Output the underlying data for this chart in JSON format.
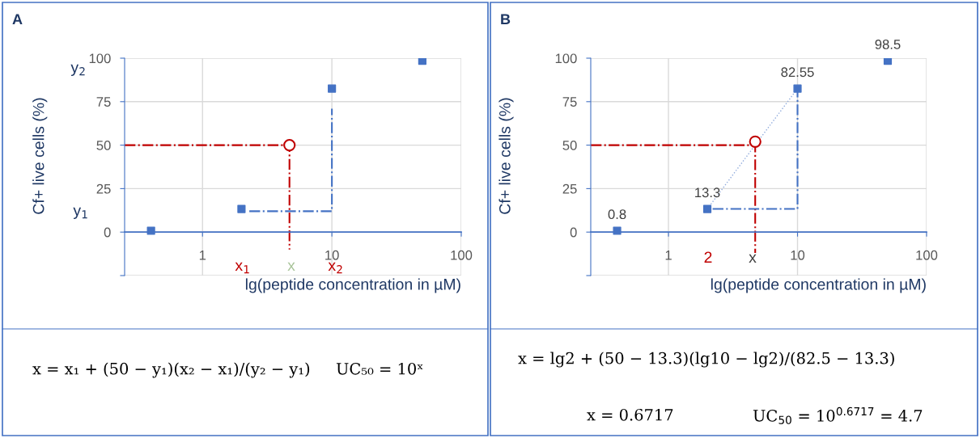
{
  "chart_data": [
    {
      "type": "scatter",
      "title": "A",
      "xlabel": "lg(peptide concentration in µM)",
      "ylabel": "Cf+ live cells (%)",
      "log": "x",
      "xlim": [
        0.25,
        100
      ],
      "xticks": [
        1,
        10,
        100
      ],
      "ylim": [
        -25,
        100
      ],
      "yticks": [
        {
          "value": -25,
          "label": null
        },
        0,
        25,
        50,
        75,
        100
      ],
      "grid": true,
      "ref_lines": [
        {
          "axis": "y",
          "value": 0,
          "color": "#4472c4"
        }
      ],
      "series": [
        {
          "type": "line",
          "color": "#c00000",
          "line_style": "dashed",
          "marker": "none",
          "x": [
            0.25,
            4.7,
            4.7
          ],
          "values": [
            50,
            50,
            -10
          ]
        },
        {
          "type": "line",
          "color": "#4472c4",
          "line_style": "dashed",
          "marker": "none",
          "x": [
            2.3,
            10,
            10
          ],
          "values": [
            12,
            12,
            71
          ]
        },
        {
          "type": "scatter",
          "color": "#4472c4",
          "marker": "square",
          "x": [
            0.4,
            2,
            10,
            50
          ],
          "values": [
            0.8,
            13.3,
            82.55,
            98.5
          ]
        },
        {
          "type": "scatter",
          "color": "#c00000",
          "marker": "circle",
          "x": [
            4.7
          ],
          "values": [
            50
          ]
        }
      ],
      "annotations": [
        "y$_{2}$",
        "y$_{1}$",
        "x$_{1}$",
        "x",
        "x$_{2}$",
        "x = x₁ + (50 − y₁)(x₂ − x₁)/(y₂ − y₁)",
        "UC₅₀ = 10ˣ"
      ]
    },
    {
      "type": "scatter",
      "title": "B",
      "xlabel": "lg(peptide concentration in µM)",
      "ylabel": "Cf+ live cells (%)",
      "log": "x",
      "xlim": [
        0.25,
        100
      ],
      "xticks": [
        1,
        10,
        100
      ],
      "ylim": [
        -25,
        100
      ],
      "yticks": [
        {
          "value": -25,
          "label": null
        },
        0,
        25,
        50,
        75,
        100
      ],
      "grid": true,
      "ref_lines": [
        {
          "axis": "y",
          "value": 0,
          "color": "#4472c4"
        }
      ],
      "series": [
        {
          "type": "line",
          "color": "#8faadc",
          "line_style": "dotted",
          "marker": "none",
          "x": [
            2,
            10
          ],
          "values": [
            13.3,
            82.55
          ]
        },
        {
          "type": "line",
          "color": "#c00000",
          "line_style": "dashed",
          "marker": "none",
          "x": [
            0.25,
            4.7,
            4.7
          ],
          "values": [
            50,
            50,
            -12
          ]
        },
        {
          "type": "line",
          "color": "#4472c4",
          "line_style": "dashed",
          "marker": "none",
          "x": [
            2.2,
            10,
            10
          ],
          "values": [
            13.3,
            13.3,
            82.55
          ]
        },
        {
          "type": "scatter",
          "color": "#4472c4",
          "marker": "square",
          "x": [
            0.4,
            2,
            10,
            50
          ],
          "values": [
            0.8,
            13.3,
            82.55,
            98.5
          ],
          "value_labels": [
            "0.8",
            "13.3",
            "82.55",
            "98.5"
          ]
        },
        {
          "type": "scatter",
          "color": "#c00000",
          "marker": "circle",
          "x": [
            4.7
          ],
          "values": [
            52
          ]
        }
      ],
      "annotations": [
        "2",
        "x",
        "x = lg2 + (50 − 13.3)(lg10 − lg2)/(82.5 − 13.3)",
        "x = 0.6717",
        "UC$_{50}$ = 10$^{0.6717}$ = 4.7"
      ]
    }
  ]
}
